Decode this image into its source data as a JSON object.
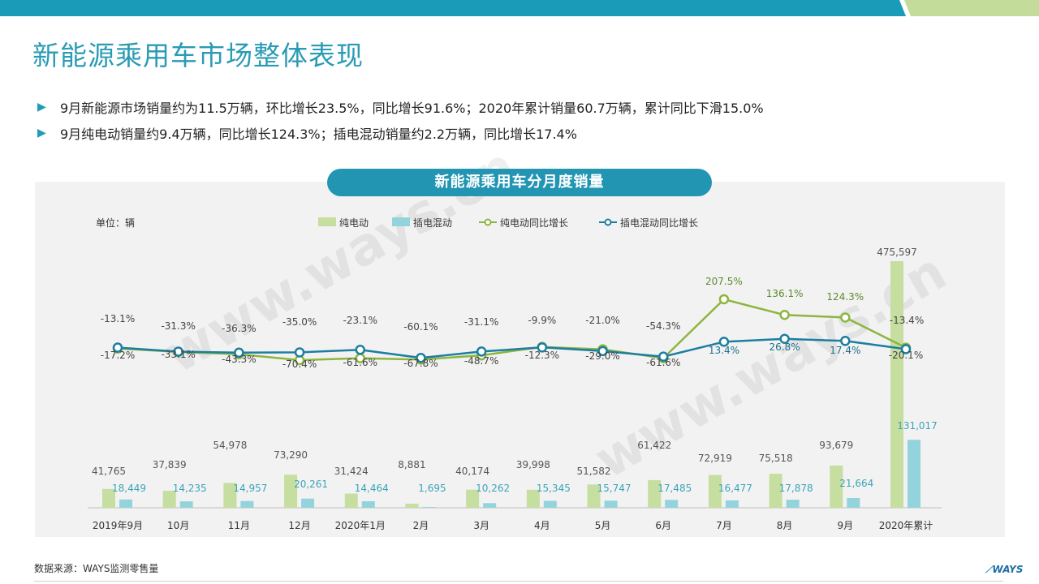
{
  "title": "新能源乘用车市场整体表现",
  "bullets": [
    "9月新能源市场销量约为11.5万辆，环比增长23.5%，同比增长91.6%；2020年累计销量60.7万辆，累计同比下滑15.0%",
    "9月纯电动销量约9.4万辆，同比增长124.3%；插电混动销量约2.2万辆，同比增长17.4%"
  ],
  "source": "数据来源：WAYS监测零售量",
  "logo": "WAYS",
  "watermark": "www.ways.cn",
  "colors": {
    "bev": "#c6dea0",
    "phev": "#93d3dc",
    "bev_line": "#8db53f",
    "phev_line": "#1c7ea0",
    "accent": "#2295b3"
  },
  "chart_data": {
    "type": "bar+line",
    "title": "新能源乘用车分月度销量",
    "unit_label": "单位：辆",
    "categories": [
      "2019年9月",
      "10月",
      "11月",
      "12月",
      "2020年1月",
      "2月",
      "3月",
      "4月",
      "5月",
      "6月",
      "7月",
      "8月",
      "9月",
      "2020年累计"
    ],
    "series": [
      {
        "name": "纯电动",
        "kind": "bar",
        "values": [
          41765,
          37839,
          54978,
          73290,
          31424,
          8881,
          40174,
          39998,
          51582,
          61422,
          72919,
          75518,
          93679,
          475597
        ],
        "labels": [
          "41,765",
          "37,839",
          "54,978",
          "73,290",
          "31,424",
          "8,881",
          "40,174",
          "39,998",
          "51,582",
          "61,422",
          "72,919",
          "75,518",
          "93,679",
          "475,597"
        ]
      },
      {
        "name": "插电混动",
        "kind": "bar",
        "values": [
          18449,
          14235,
          14957,
          20261,
          14464,
          1695,
          10262,
          15345,
          15747,
          17485,
          16477,
          17878,
          21664,
          131017
        ],
        "labels": [
          "18,449",
          "14,235",
          "14,957",
          "20,261",
          "14,464",
          "1,695",
          "10,262",
          "15,345",
          "15,747",
          "17,485",
          "16,477",
          "17,878",
          "21,664",
          "131,017"
        ]
      },
      {
        "name": "纯电动同比增长",
        "kind": "line",
        "values": [
          -17.2,
          -33.1,
          -43.3,
          -70.4,
          -61.6,
          -67.8,
          -48.7,
          -9.9,
          -21.0,
          -61.6,
          207.5,
          136.1,
          124.3,
          -13.4
        ],
        "labels": [
          "-17.2%",
          "-33.1%",
          "-43.3%",
          "-70.4%",
          "-61.6%",
          "-67.8%",
          "-48.7%",
          "-9.9%",
          "-21.0%",
          "-61.6%",
          "207.5%",
          "136.1%",
          "124.3%",
          "-13.4%"
        ]
      },
      {
        "name": "插电混动同比增长",
        "kind": "line",
        "values": [
          -13.1,
          -31.3,
          -36.3,
          -35.0,
          -23.1,
          -60.1,
          -31.1,
          -12.3,
          -29.0,
          -54.3,
          13.4,
          26.8,
          17.4,
          -20.1
        ],
        "labels": [
          "-13.1%",
          "-31.3%",
          "-36.3%",
          "-35.0%",
          "-23.1%",
          "-60.1%",
          "-31.1%",
          "-12.3%",
          "-29.0%",
          "-54.3%",
          "13.4%",
          "26.8%",
          "17.4%",
          "-20.1%"
        ]
      }
    ],
    "legend_position": "top",
    "grid": false
  }
}
